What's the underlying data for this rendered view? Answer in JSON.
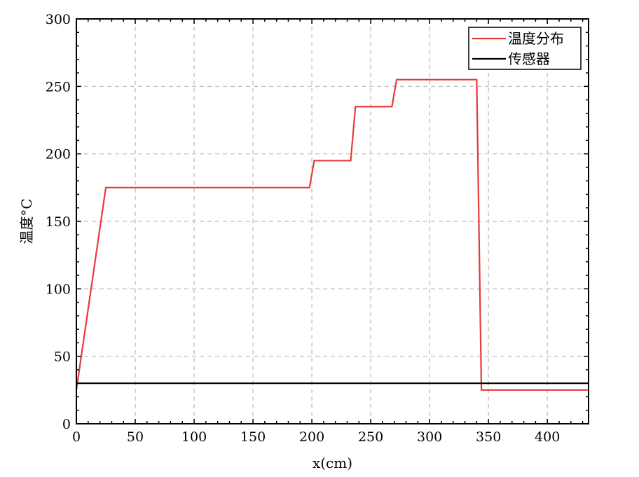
{
  "chart_data": {
    "type": "line",
    "title": "",
    "xlabel": "x(cm)",
    "ylabel": "温度°C",
    "xlim": [
      0,
      435
    ],
    "ylim": [
      0,
      300
    ],
    "xticks": [
      0,
      50,
      100,
      150,
      200,
      250,
      300,
      350,
      400
    ],
    "yticks": [
      0,
      50,
      100,
      150,
      200,
      250,
      300
    ],
    "grid": true,
    "legend_position": "top-right",
    "series": [
      {
        "name": "温度分布",
        "color": "#e8393a",
        "x": [
          0,
          25,
          198,
          202,
          233,
          237,
          268,
          272,
          340,
          344,
          435
        ],
        "y": [
          25,
          175,
          175,
          195,
          195,
          235,
          235,
          255,
          255,
          25,
          25
        ]
      },
      {
        "name": "传感器",
        "color": "#000000",
        "x": [
          0,
          435
        ],
        "y": [
          30,
          30
        ]
      }
    ]
  }
}
